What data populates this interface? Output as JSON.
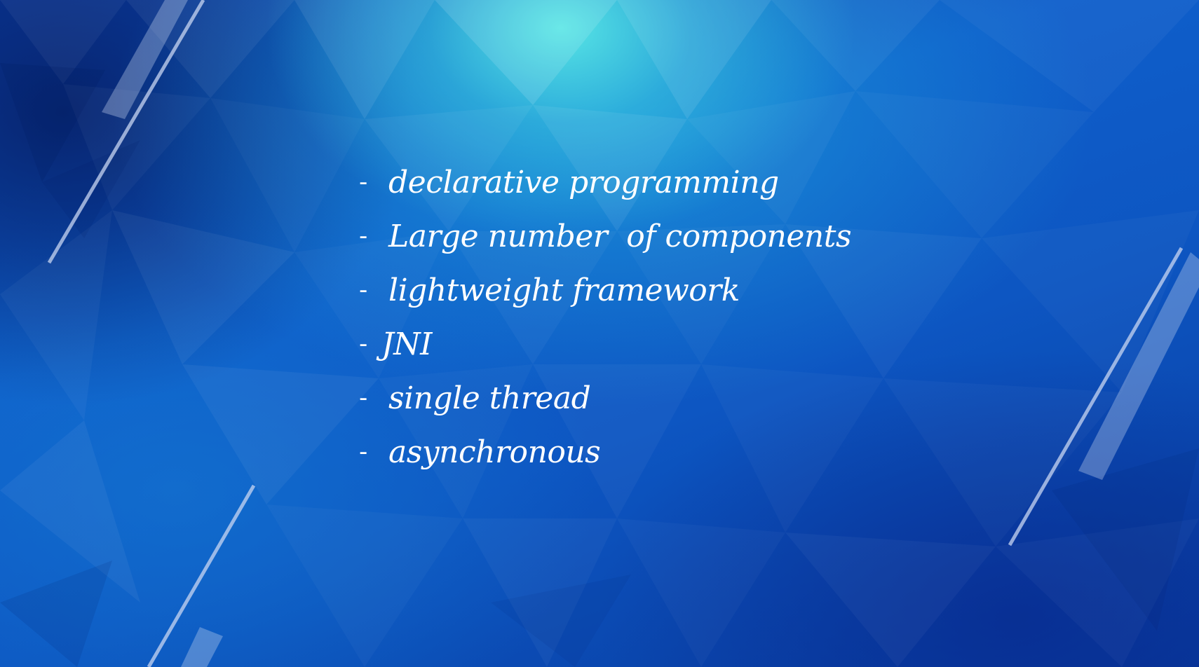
{
  "slide": {
    "bullet_marker": "-",
    "items": [
      {
        "text": "declarative programming"
      },
      {
        "text": "Large number  of components"
      },
      {
        "text": "lightweight framework"
      },
      {
        "text": "JNI"
      },
      {
        "text": "single thread"
      },
      {
        "text": "asynchronous"
      }
    ]
  },
  "colors": {
    "text": "#ffffff",
    "stripe": "#c8d6f2",
    "bg_light": "#5aebe6",
    "bg_mid": "#0f5fcb",
    "bg_dark": "#083a9e"
  }
}
